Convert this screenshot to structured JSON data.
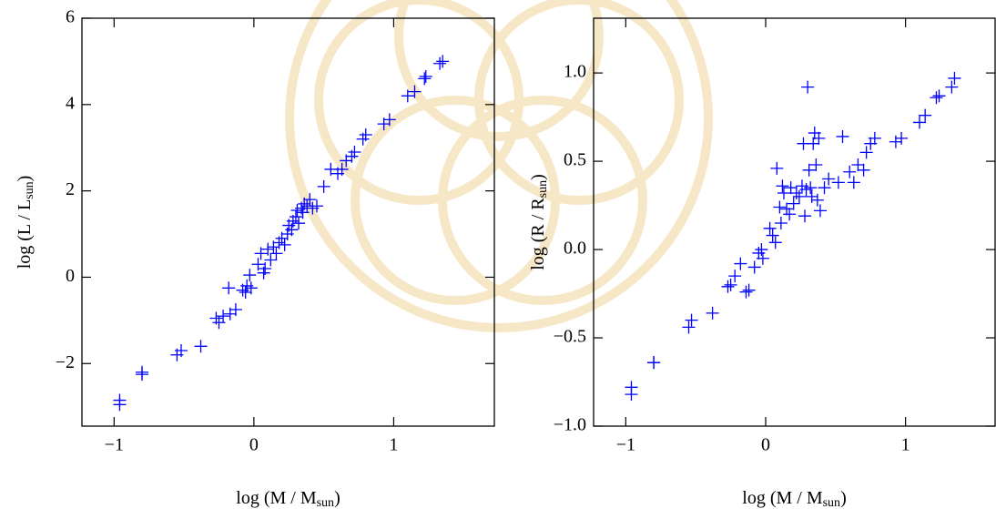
{
  "chart_data": [
    {
      "type": "scatter",
      "xlabel": [
        "log (M / M",
        "sun",
        ")"
      ],
      "ylabel": [
        "log (L / L",
        "sun",
        ")"
      ],
      "xlim": [
        -1.23,
        1.72
      ],
      "ylim": [
        -3.45,
        6
      ],
      "xticks": [
        {
          "value": -1,
          "label": "−1"
        },
        0,
        1
      ],
      "yticks": [
        {
          "value": -2,
          "label": "−2"
        },
        0,
        2,
        4,
        6
      ],
      "color": "#0000ff",
      "x": [
        -0.96,
        -0.96,
        -0.8,
        -0.8,
        -0.55,
        -0.52,
        -0.38,
        -0.27,
        -0.25,
        -0.22,
        -0.17,
        -0.13,
        -0.18,
        -0.08,
        -0.05,
        -0.06,
        -0.03,
        -0.02,
        0.03,
        0.05,
        0.07,
        0.08,
        0.1,
        0.12,
        0.14,
        0.16,
        0.18,
        0.2,
        0.22,
        0.24,
        0.25,
        0.27,
        0.28,
        0.3,
        0.31,
        0.32,
        0.34,
        0.35,
        0.36,
        0.38,
        0.4,
        0.42,
        0.45,
        0.5,
        0.55,
        0.6,
        0.63,
        0.66,
        0.7,
        0.72,
        0.78,
        0.8,
        0.93,
        0.97,
        1.1,
        1.15,
        1.22,
        1.23,
        1.33,
        1.35
      ],
      "values": [
        -2.85,
        -2.95,
        -2.2,
        -2.25,
        -1.8,
        -1.7,
        -1.6,
        -0.95,
        -1.05,
        -0.9,
        -0.85,
        -0.75,
        -0.25,
        -0.3,
        -0.2,
        -0.35,
        0.05,
        -0.25,
        0.3,
        0.55,
        0.1,
        0.2,
        0.65,
        0.4,
        0.7,
        0.55,
        0.8,
        0.9,
        0.75,
        1.0,
        1.2,
        1.1,
        1.3,
        1.4,
        1.55,
        1.25,
        1.6,
        1.5,
        1.7,
        1.65,
        1.8,
        1.6,
        1.65,
        2.1,
        2.5,
        2.4,
        2.5,
        2.7,
        2.8,
        2.9,
        3.2,
        3.3,
        3.55,
        3.65,
        4.2,
        4.3,
        4.6,
        4.65,
        4.95,
        5.0
      ]
    },
    {
      "type": "scatter",
      "xlabel": [
        "log (M / M",
        "sun",
        ")"
      ],
      "ylabel": [
        "log (R / R",
        "sun",
        ")"
      ],
      "xlim": [
        -1.23,
        1.64
      ],
      "ylim": [
        -1.0,
        1.31
      ],
      "xticks": [
        {
          "value": -1,
          "label": "−1"
        },
        0,
        1
      ],
      "yticks": [
        {
          "value": -1.0,
          "label": "−1.0"
        },
        {
          "value": -0.5,
          "label": "−0.5"
        },
        {
          "value": 0.0,
          "label": "0.0"
        },
        {
          "value": 0.5,
          "label": "0.5"
        },
        {
          "value": 1.0,
          "label": "1.0"
        }
      ],
      "color": "#0000ff",
      "x": [
        -0.96,
        -0.96,
        -0.8,
        -0.8,
        -0.55,
        -0.53,
        -0.38,
        -0.27,
        -0.25,
        -0.22,
        -0.18,
        -0.14,
        -0.12,
        -0.08,
        -0.05,
        -0.03,
        -0.02,
        0.03,
        0.05,
        0.07,
        0.08,
        0.1,
        0.11,
        0.12,
        0.13,
        0.15,
        0.17,
        0.18,
        0.2,
        0.22,
        0.24,
        0.26,
        0.27,
        0.28,
        0.29,
        0.3,
        0.31,
        0.32,
        0.33,
        0.34,
        0.35,
        0.36,
        0.37,
        0.38,
        0.39,
        0.42,
        0.45,
        0.52,
        0.55,
        0.6,
        0.63,
        0.66,
        0.7,
        0.72,
        0.75,
        0.78,
        0.93,
        0.97,
        1.1,
        1.14,
        1.22,
        1.24,
        1.33,
        1.35
      ],
      "values": [
        -0.78,
        -0.82,
        -0.64,
        -0.64,
        -0.44,
        -0.4,
        -0.36,
        -0.21,
        -0.2,
        -0.15,
        -0.08,
        -0.24,
        -0.23,
        -0.1,
        -0.02,
        0.0,
        -0.05,
        0.12,
        0.08,
        0.04,
        0.46,
        0.24,
        0.15,
        0.36,
        0.32,
        0.23,
        0.2,
        0.35,
        0.26,
        0.32,
        0.3,
        0.36,
        0.6,
        0.19,
        0.34,
        0.92,
        0.45,
        0.35,
        0.3,
        0.6,
        0.66,
        0.48,
        0.28,
        0.63,
        0.22,
        0.35,
        0.4,
        0.38,
        0.64,
        0.44,
        0.38,
        0.48,
        0.45,
        0.55,
        0.6,
        0.63,
        0.61,
        0.63,
        0.72,
        0.76,
        0.86,
        0.87,
        0.92,
        0.97
      ]
    }
  ]
}
